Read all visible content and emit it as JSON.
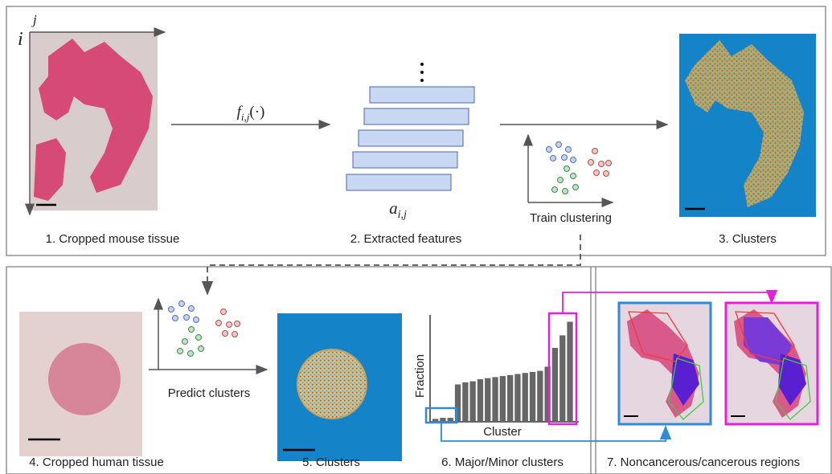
{
  "panel_1": {
    "axis_j": "j",
    "axis_i": "i",
    "caption": "1. Cropped mouse tissue"
  },
  "transform": {
    "name": "f",
    "subscript": "i,j",
    "args": "(·)"
  },
  "panel_2": {
    "feature": {
      "name": "a",
      "subscript": "i,j"
    },
    "caption": "2. Extracted features"
  },
  "train_label": "Train clustering",
  "panel_3": {
    "caption": "3. Clusters"
  },
  "panel_4": {
    "caption": "4. Cropped human tissue"
  },
  "predict_label": "Predict clusters",
  "panel_5": {
    "caption": "5. Clusters"
  },
  "panel_6": {
    "caption": "6. Major/Minor clusters",
    "histogram": {
      "x_label": "Cluster",
      "y_label": "Fraction",
      "values": [
        2,
        3,
        3,
        35,
        37,
        38,
        40,
        41,
        42,
        43,
        44,
        45,
        46,
        47,
        48,
        52,
        70,
        82,
        95
      ]
    }
  },
  "panel_7": {
    "caption": "7. Noncancerous/cancerous regions"
  }
}
